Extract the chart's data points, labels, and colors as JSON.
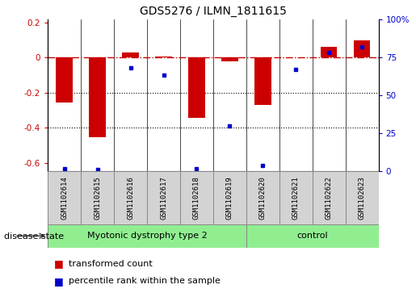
{
  "title": "GDS5276 / ILMN_1811615",
  "samples": [
    "GSM1102614",
    "GSM1102615",
    "GSM1102616",
    "GSM1102617",
    "GSM1102618",
    "GSM1102619",
    "GSM1102620",
    "GSM1102621",
    "GSM1102622",
    "GSM1102623"
  ],
  "red_values": [
    -0.255,
    -0.455,
    0.03,
    0.005,
    -0.345,
    -0.02,
    -0.27,
    0.0,
    0.06,
    0.1
  ],
  "blue_values_pct": [
    2,
    1,
    68,
    63,
    2,
    30,
    4,
    67,
    78,
    82
  ],
  "ylim_left": [
    -0.65,
    0.22
  ],
  "ylim_right": [
    0,
    100
  ],
  "groups": [
    {
      "label": "Myotonic dystrophy type 2",
      "start": 0,
      "end": 6,
      "color": "#90ee90"
    },
    {
      "label": "control",
      "start": 6,
      "end": 10,
      "color": "#90ee90"
    }
  ],
  "disease_state_label": "disease state",
  "legend_red": "transformed count",
  "legend_blue": "percentile rank within the sample",
  "red_bar_color": "#cc0000",
  "blue_dot_color": "#0000cc",
  "red_line_color": "#cc0000",
  "dotted_line_color": "#000000",
  "bar_width": 0.5,
  "left_ticks": [
    0.2,
    0.0,
    -0.2,
    -0.4,
    -0.6
  ],
  "right_ticks": [
    100,
    75,
    50,
    25,
    0
  ],
  "title_fontsize": 10,
  "tick_fontsize": 7.5,
  "sample_fontsize": 6.5,
  "group_fontsize": 8,
  "legend_fontsize": 8,
  "disease_state_fontsize": 8
}
